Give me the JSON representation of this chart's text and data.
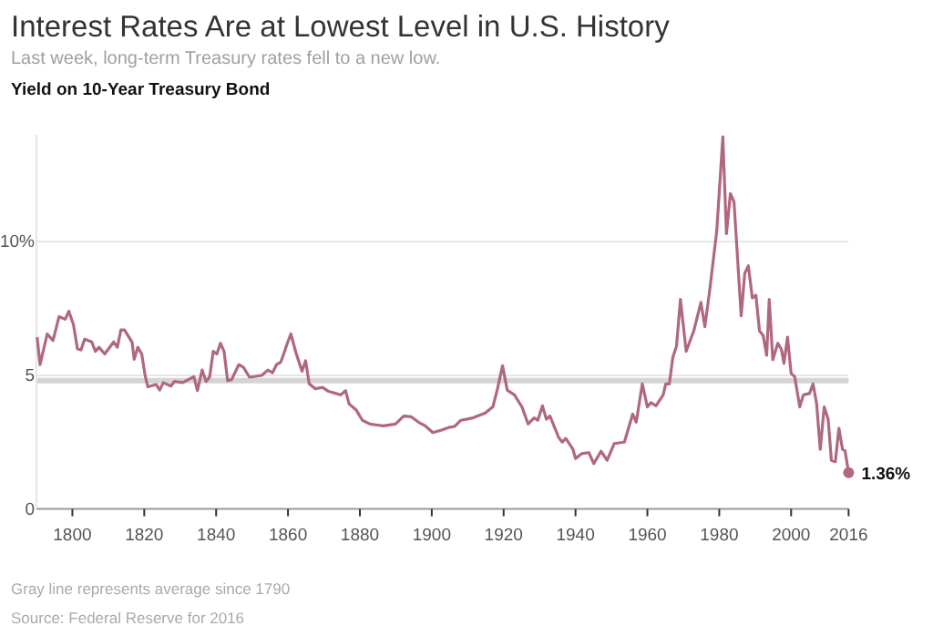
{
  "chart_data": {
    "type": "line",
    "title": "Interest Rates Are at Lowest Level in U.S. History",
    "subtitle": "Last week, long-term Treasury rates fell to a new low.",
    "x": [
      1790.2,
      1791,
      1793,
      1794.6,
      1796.3,
      1798,
      1799,
      1800.3,
      1801.4,
      1802.4,
      1803.4,
      1805.4,
      1806.4,
      1807.4,
      1809,
      1811.5,
      1812.5,
      1813.5,
      1814.5,
      1816.6,
      1817.2,
      1818.2,
      1819.3,
      1820.3,
      1821,
      1823.3,
      1824.3,
      1825.3,
      1827.4,
      1828.4,
      1830.7,
      1833.8,
      1834.8,
      1836.1,
      1837.2,
      1838.2,
      1839.2,
      1840.2,
      1841.2,
      1842.2,
      1843.2,
      1844.3,
      1846.3,
      1847.6,
      1849.3,
      1852.7,
      1854.4,
      1855.7,
      1856.8,
      1858,
      1858.8,
      1859.8,
      1860.8,
      1862.2,
      1863.9,
      1864.9,
      1865.9,
      1867.6,
      1869.6,
      1871.3,
      1874.7,
      1876,
      1877,
      1879,
      1880.7,
      1882.8,
      1884.8,
      1886.5,
      1889.9,
      1892.2,
      1894.3,
      1896.3,
      1898.3,
      1900.3,
      1902.7,
      1904.7,
      1906.4,
      1908.1,
      1911.5,
      1914.9,
      1917,
      1918.3,
      1919.7,
      1921,
      1923,
      1925.1,
      1926.8,
      1928.5,
      1929.5,
      1930.8,
      1931.9,
      1932.9,
      1935.3,
      1936.3,
      1937.3,
      1939.3,
      1940,
      1941.7,
      1943.7,
      1945.1,
      1947.1,
      1948.8,
      1950.8,
      1953.6,
      1955.9,
      1956.9,
      1958.6,
      1960,
      1961,
      1962.4,
      1964.4,
      1965.1,
      1966.1,
      1967.1,
      1968.1,
      1969.2,
      1970.8,
      1972.9,
      1974.9,
      1976,
      1977.3,
      1979.3,
      1981,
      1982,
      1983.1,
      1984.1,
      1986.1,
      1987.1,
      1988.1,
      1989.2,
      1990.2,
      1991.2,
      1992.2,
      1993.2,
      1993.9,
      1994.9,
      1996.3,
      1997.3,
      1998,
      1999,
      2000,
      2001,
      2002.4,
      2003.4,
      2005.1,
      2006.1,
      2007.1,
      2008.1,
      2009.2,
      2010.3,
      2011.2,
      2012.3,
      2013.3,
      2014.3,
      2015,
      2016
    ],
    "series": [
      {
        "color": "#b0687e",
        "values": [
          6.43,
          5.4,
          6.55,
          6.3,
          7.2,
          7.1,
          7.4,
          6.9,
          6.0,
          5.95,
          6.35,
          6.25,
          5.9,
          6.05,
          5.8,
          6.25,
          6.05,
          6.7,
          6.7,
          6.25,
          5.6,
          6.05,
          5.8,
          4.95,
          4.57,
          4.66,
          4.45,
          4.73,
          4.6,
          4.77,
          4.73,
          4.95,
          4.43,
          5.2,
          4.77,
          4.95,
          5.9,
          5.8,
          6.2,
          5.9,
          4.8,
          4.84,
          5.4,
          5.3,
          4.93,
          5.0,
          5.2,
          5.1,
          5.4,
          5.5,
          5.8,
          6.2,
          6.55,
          5.85,
          5.15,
          5.55,
          4.68,
          4.5,
          4.55,
          4.4,
          4.27,
          4.43,
          3.93,
          3.7,
          3.32,
          3.18,
          3.14,
          3.11,
          3.18,
          3.48,
          3.45,
          3.25,
          3.1,
          2.86,
          2.95,
          3.05,
          3.09,
          3.32,
          3.41,
          3.59,
          3.82,
          4.5,
          5.36,
          4.45,
          4.27,
          3.82,
          3.18,
          3.41,
          3.32,
          3.86,
          3.36,
          3.48,
          2.68,
          2.5,
          2.64,
          2.23,
          1.89,
          2.07,
          2.11,
          1.7,
          2.16,
          1.82,
          2.45,
          2.5,
          3.55,
          3.25,
          4.68,
          3.82,
          3.98,
          3.86,
          4.27,
          4.68,
          4.68,
          5.68,
          6.09,
          7.84,
          5.9,
          6.66,
          7.73,
          6.82,
          8.14,
          10.4,
          13.93,
          10.3,
          11.8,
          11.5,
          7.23,
          8.82,
          9.1,
          7.9,
          8.0,
          6.66,
          6.5,
          5.75,
          7.84,
          5.59,
          6.2,
          5.98,
          5.45,
          6.43,
          5.07,
          4.95,
          3.82,
          4.27,
          4.32,
          4.68,
          3.93,
          2.23,
          3.82,
          3.36,
          1.82,
          1.77,
          3.02,
          2.23,
          2.18,
          1.36
        ]
      }
    ],
    "xlim": [
      1790,
      2016
    ],
    "xticks": [
      1800,
      1820,
      1840,
      1860,
      1880,
      1900,
      1920,
      1940,
      1960,
      1980,
      2000,
      2016
    ],
    "ylim": [
      0,
      14
    ],
    "yticks": [
      0,
      5,
      {
        "value": 10,
        "label": "10%"
      }
    ],
    "grid": "y",
    "ref_lines": [
      {
        "axis": "y",
        "value": 4.8,
        "color": "#d4d4d4"
      }
    ],
    "annotations": [
      "Yield on 10-Year Treasury Bond",
      {
        "text": "1.36%",
        "x": 2016,
        "y": 1.36
      },
      "Gray line represents average since 1790",
      "Source: Federal Reserve for 2016"
    ]
  }
}
